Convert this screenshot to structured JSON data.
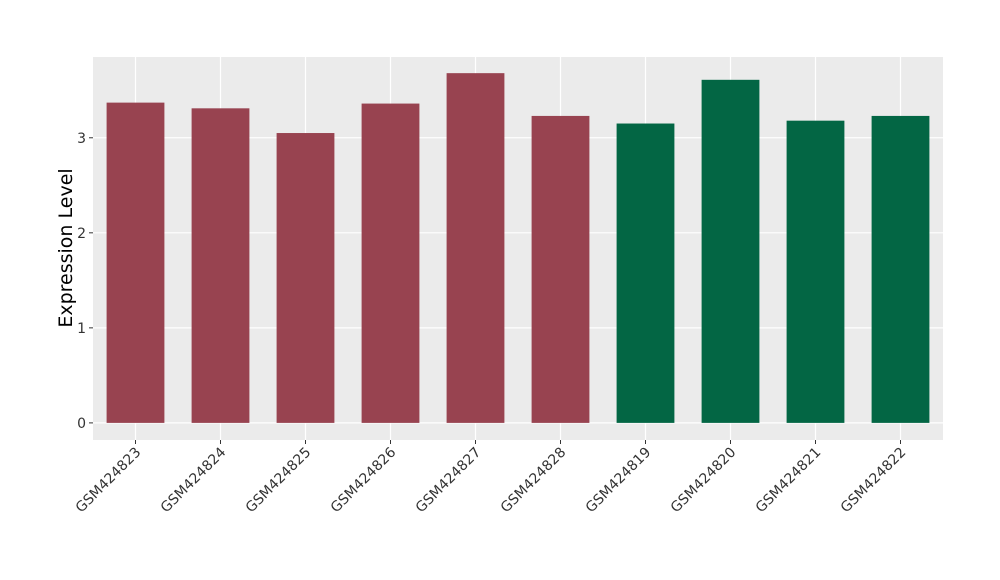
{
  "chart_data": {
    "type": "bar",
    "y_label": "Expression Level",
    "categories": [
      "GSM424823",
      "GSM424824",
      "GSM424825",
      "GSM424826",
      "GSM424827",
      "GSM424828",
      "GSM424819",
      "GSM424820",
      "GSM424821",
      "GSM424822"
    ],
    "values": [
      3.37,
      3.31,
      3.05,
      3.36,
      3.68,
      3.23,
      3.15,
      3.61,
      3.18,
      3.23
    ],
    "colors": [
      "#984350",
      "#984350",
      "#984350",
      "#984350",
      "#984350",
      "#984350",
      "#036644",
      "#036644",
      "#036644",
      "#036644"
    ],
    "ylim": [
      -0.18,
      3.85
    ],
    "yticks": [
      0,
      1,
      2,
      3
    ],
    "grid": true
  }
}
